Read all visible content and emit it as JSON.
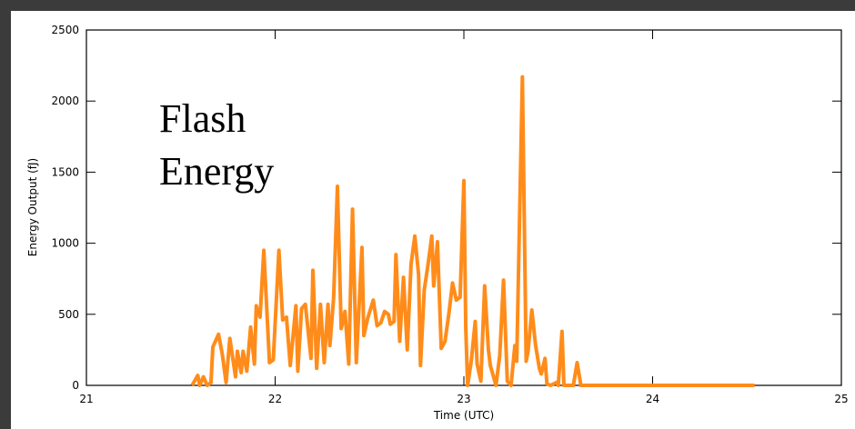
{
  "chart_data": {
    "type": "line",
    "annotation": [
      "Flash",
      "Energy"
    ],
    "x_label": "Time (UTC)",
    "y_label": "Energy Output (fJ)",
    "xlim": [
      21,
      25
    ],
    "xticks": [
      21,
      22,
      23,
      24,
      25
    ],
    "ylim": [
      0,
      2500
    ],
    "yticks": [
      0,
      500,
      1000,
      1500,
      2000,
      2500
    ],
    "series": [
      {
        "color": "#ff8c1a",
        "x": [
          21.56,
          21.59,
          21.6,
          21.62,
          21.64,
          21.66,
          21.67,
          21.7,
          21.72,
          21.74,
          21.76,
          21.79,
          21.8,
          21.82,
          21.83,
          21.85,
          21.87,
          21.89,
          21.9,
          21.92,
          21.94,
          21.97,
          21.99,
          22.02,
          22.04,
          22.06,
          22.08,
          22.11,
          22.12,
          22.14,
          22.16,
          22.19,
          22.2,
          22.22,
          22.24,
          22.26,
          22.28,
          22.29,
          22.31,
          22.33,
          22.35,
          22.37,
          22.39,
          22.41,
          22.43,
          22.46,
          22.47,
          22.49,
          22.52,
          22.54,
          22.56,
          22.58,
          22.6,
          22.61,
          22.63,
          22.64,
          22.66,
          22.68,
          22.7,
          22.72,
          22.74,
          22.76,
          22.77,
          22.79,
          22.81,
          22.83,
          22.84,
          22.86,
          22.88,
          22.9,
          22.92,
          22.94,
          22.96,
          22.98,
          23.0,
          23.01,
          23.02,
          23.04,
          23.06,
          23.07,
          23.09,
          23.11,
          23.13,
          23.14,
          23.17,
          23.19,
          23.21,
          23.23,
          23.25,
          23.27,
          23.28,
          23.31,
          23.33,
          23.34,
          23.36,
          23.38,
          23.4,
          23.41,
          23.43,
          23.44,
          23.46,
          23.49,
          23.5,
          23.52,
          23.53,
          23.55,
          23.58,
          23.6,
          23.62,
          24.54
        ],
        "values": [
          0,
          70,
          0,
          60,
          0,
          20,
          270,
          360,
          220,
          20,
          330,
          60,
          240,
          90,
          240,
          100,
          410,
          150,
          560,
          480,
          950,
          160,
          180,
          950,
          460,
          480,
          140,
          560,
          100,
          540,
          570,
          190,
          810,
          120,
          570,
          160,
          570,
          280,
          620,
          1400,
          400,
          520,
          150,
          1240,
          160,
          970,
          350,
          470,
          600,
          420,
          440,
          520,
          500,
          430,
          450,
          920,
          310,
          760,
          250,
          850,
          1050,
          780,
          140,
          670,
          850,
          1050,
          700,
          1010,
          260,
          310,
          500,
          720,
          600,
          620,
          1440,
          400,
          0,
          180,
          450,
          150,
          30,
          700,
          250,
          140,
          0,
          210,
          740,
          30,
          0,
          280,
          170,
          2170,
          170,
          240,
          530,
          280,
          120,
          80,
          190,
          10,
          0,
          20,
          0,
          380,
          0,
          0,
          0,
          160,
          0,
          0
        ]
      }
    ]
  }
}
